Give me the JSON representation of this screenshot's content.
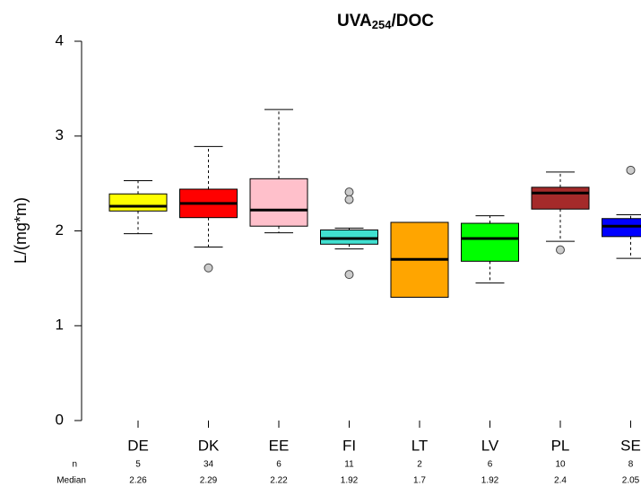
{
  "chart_data": {
    "type": "box",
    "title": "UVA",
    "title_subscript": "254",
    "title_suffix": "/DOC",
    "ylabel": "L/(mg*m)",
    "ylim": [
      0,
      4
    ],
    "yticks": [
      0,
      1,
      2,
      3,
      4
    ],
    "categories": [
      "DE",
      "DK",
      "EE",
      "FI",
      "LT",
      "LV",
      "PL",
      "SE"
    ],
    "n_label": "n",
    "median_label": "Median",
    "n": [
      5,
      34,
      6,
      11,
      2,
      6,
      10,
      8
    ],
    "boxes": [
      {
        "color": "#ffff00",
        "whisker_low": 1.97,
        "q1": 2.21,
        "median": 2.26,
        "q3": 2.39,
        "whisker_high": 2.53,
        "outliers": []
      },
      {
        "color": "#ff0000",
        "whisker_low": 1.83,
        "q1": 2.14,
        "median": 2.29,
        "q3": 2.44,
        "whisker_high": 2.89,
        "outliers": [
          1.61
        ]
      },
      {
        "color": "#ffc0cb",
        "whisker_low": 1.98,
        "q1": 2.05,
        "median": 2.22,
        "q3": 2.55,
        "whisker_high": 3.28,
        "outliers": []
      },
      {
        "color": "#40e0d0",
        "whisker_low": 1.81,
        "q1": 1.86,
        "median": 1.92,
        "q3": 2.01,
        "whisker_high": 2.03,
        "outliers": [
          2.41,
          2.33,
          1.54
        ]
      },
      {
        "color": "#ffa500",
        "whisker_low": 1.3,
        "q1": 1.3,
        "median": 1.7,
        "q3": 2.09,
        "whisker_high": 2.09,
        "outliers": []
      },
      {
        "color": "#00ff00",
        "whisker_low": 1.45,
        "q1": 1.68,
        "median": 1.92,
        "q3": 2.08,
        "whisker_high": 2.16,
        "outliers": []
      },
      {
        "color": "#a52a2a",
        "whisker_low": 1.89,
        "q1": 2.23,
        "median": 2.4,
        "q3": 2.46,
        "whisker_high": 2.62,
        "outliers": [
          1.8
        ]
      },
      {
        "color": "#0000ff",
        "whisker_low": 1.71,
        "q1": 1.94,
        "median": 2.05,
        "q3": 2.13,
        "whisker_high": 2.17,
        "outliers": [
          2.64
        ]
      }
    ]
  }
}
